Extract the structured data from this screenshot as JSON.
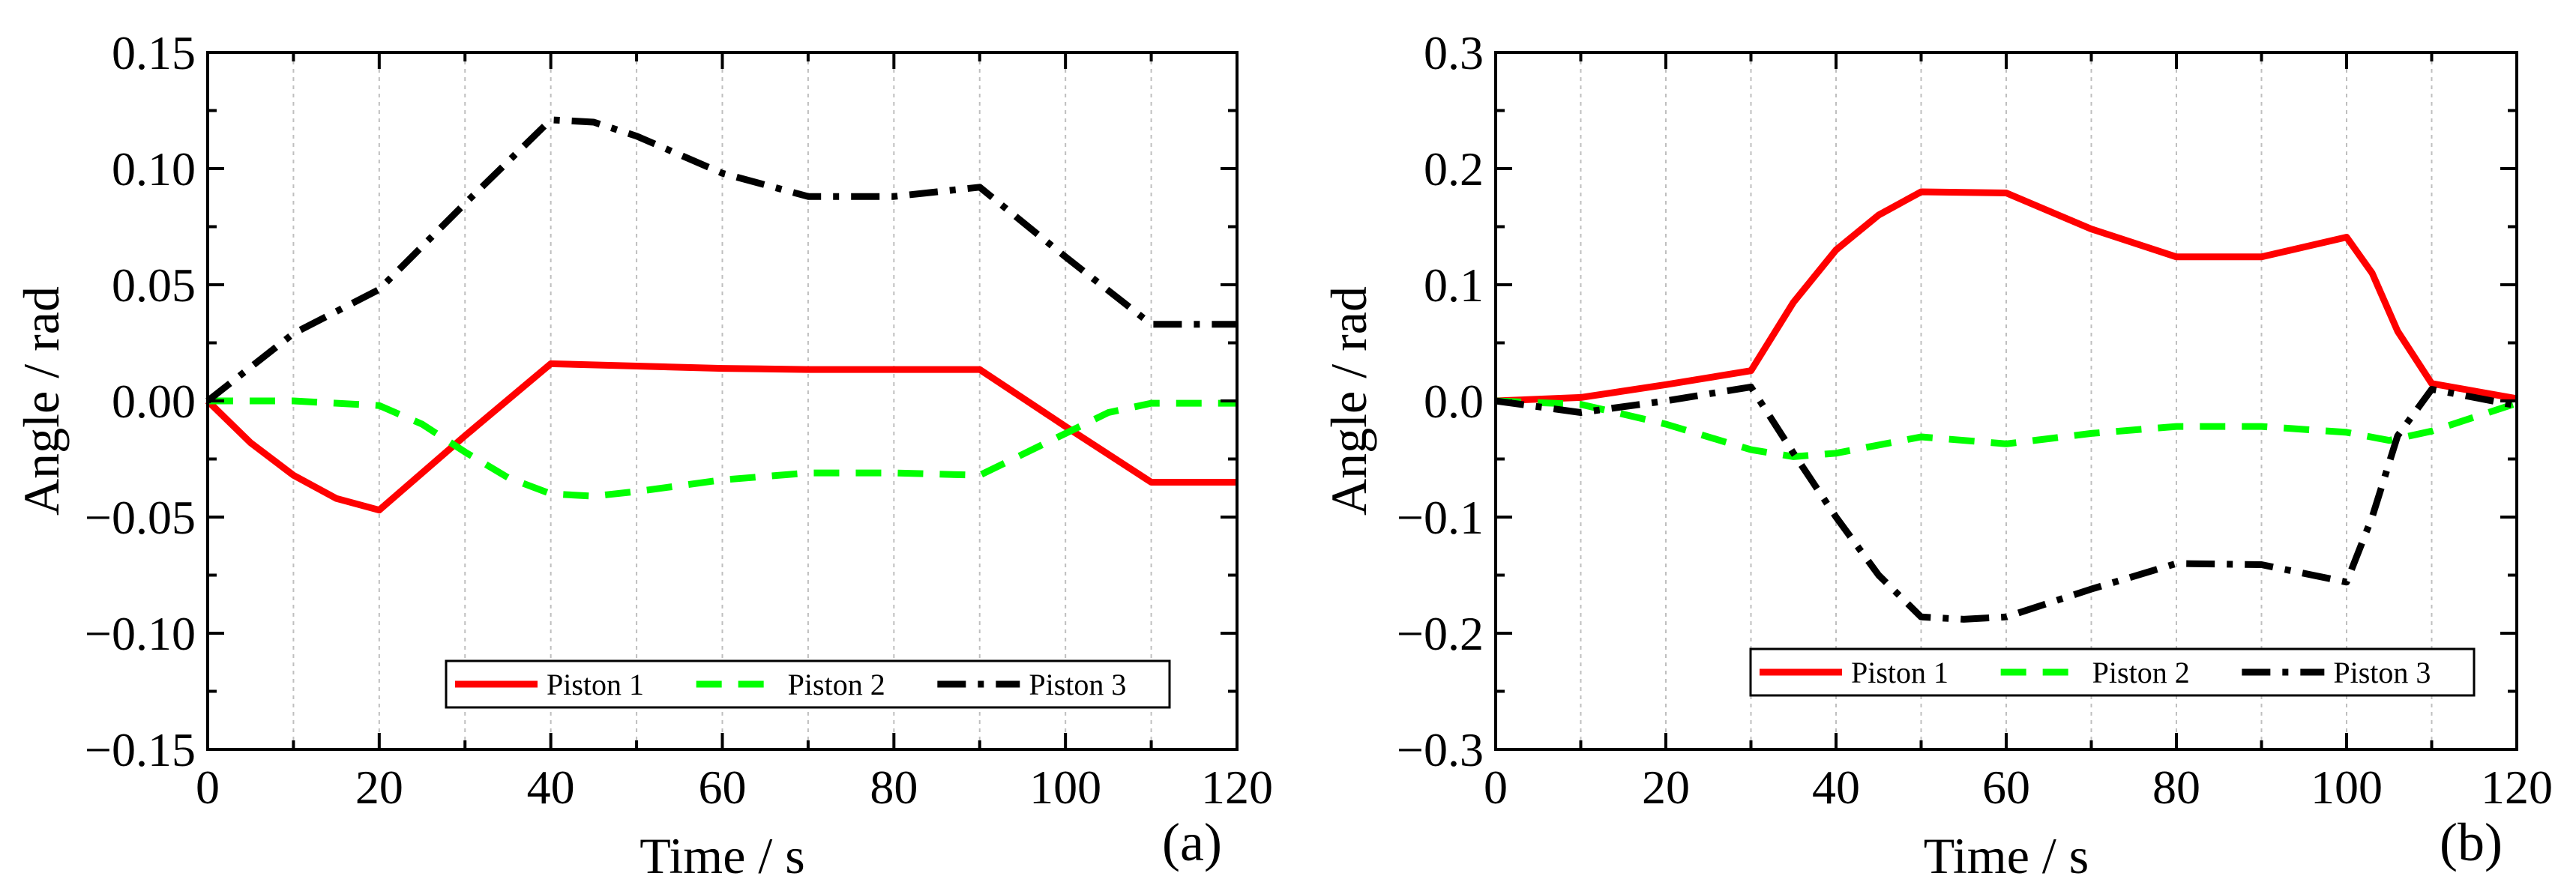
{
  "chart_data": [
    {
      "type": "line",
      "panel_label": "(a)",
      "xlabel": "Time / s",
      "ylabel": "Angle / rad",
      "xlim": [
        0,
        120
      ],
      "ylim": [
        -0.15,
        0.15
      ],
      "x_ticks": [
        0,
        20,
        40,
        60,
        80,
        100,
        120
      ],
      "y_ticks": [
        -0.15,
        -0.1,
        -0.05,
        0.0,
        0.05,
        0.1,
        0.15
      ],
      "x_tick_labels": [
        "0",
        "20",
        "40",
        "60",
        "80",
        "100",
        "120"
      ],
      "y_tick_labels": [
        "−0.15",
        "−0.10",
        "−0.05",
        "0.00",
        "0.05",
        "0.10",
        "0.15"
      ],
      "vertical_gridlines": [
        10,
        20,
        30,
        40,
        50,
        60,
        70,
        80,
        90,
        100,
        110
      ],
      "legend_position": "bottom-right",
      "series": [
        {
          "name": "Piston 1",
          "color": "#ff0000",
          "style": "solid",
          "x": [
            0,
            5,
            10,
            15,
            20,
            30,
            40,
            50,
            60,
            70,
            80,
            90,
            100,
            110,
            120
          ],
          "y": [
            0.0,
            -0.018,
            -0.032,
            -0.042,
            -0.047,
            -0.015,
            0.016,
            0.015,
            0.014,
            0.0135,
            0.0135,
            0.0135,
            -0.011,
            -0.035,
            -0.035
          ]
        },
        {
          "name": "Piston 2",
          "color": "#00ff00",
          "style": "dashed",
          "x": [
            0,
            10,
            20,
            25,
            30,
            35,
            40,
            45,
            50,
            60,
            70,
            80,
            90,
            100,
            105,
            110,
            120
          ],
          "y": [
            0.0,
            0.0,
            -0.002,
            -0.01,
            -0.022,
            -0.033,
            -0.04,
            -0.041,
            -0.039,
            -0.034,
            -0.031,
            -0.031,
            -0.032,
            -0.014,
            -0.005,
            -0.001,
            -0.001
          ]
        },
        {
          "name": "Piston 3",
          "color": "#000000",
          "style": "dashdot",
          "x": [
            0,
            10,
            20,
            30,
            40,
            45,
            50,
            60,
            70,
            80,
            90,
            100,
            110,
            120
          ],
          "y": [
            0.0,
            0.029,
            0.048,
            0.085,
            0.121,
            0.12,
            0.114,
            0.098,
            0.088,
            0.088,
            0.092,
            0.062,
            0.033,
            0.033
          ]
        }
      ]
    },
    {
      "type": "line",
      "panel_label": "(b)",
      "xlabel": "Time / s",
      "ylabel": "Angle / rad",
      "xlim": [
        0,
        120
      ],
      "ylim": [
        -0.3,
        0.3
      ],
      "x_ticks": [
        0,
        20,
        40,
        60,
        80,
        100,
        120
      ],
      "y_ticks": [
        -0.3,
        -0.2,
        -0.1,
        0.0,
        0.1,
        0.2,
        0.3
      ],
      "x_tick_labels": [
        "0",
        "20",
        "40",
        "60",
        "80",
        "100",
        "120"
      ],
      "y_tick_labels": [
        "−0.3",
        "−0.2",
        "−0.1",
        "0.0",
        "0.1",
        "0.2",
        "0.3"
      ],
      "vertical_gridlines": [
        10,
        20,
        30,
        40,
        50,
        60,
        70,
        80,
        90,
        100,
        110
      ],
      "legend_position": "bottom-right",
      "series": [
        {
          "name": "Piston 1",
          "color": "#ff0000",
          "style": "solid",
          "x": [
            0,
            10,
            20,
            30,
            35,
            40,
            45,
            50,
            60,
            70,
            80,
            90,
            100,
            103,
            106,
            110,
            120
          ],
          "y": [
            0.0,
            0.003,
            0.014,
            0.026,
            0.085,
            0.13,
            0.16,
            0.18,
            0.179,
            0.148,
            0.124,
            0.124,
            0.141,
            0.11,
            0.06,
            0.015,
            0.002
          ]
        },
        {
          "name": "Piston 2",
          "color": "#00ff00",
          "style": "dashed",
          "x": [
            0,
            10,
            20,
            30,
            35,
            40,
            50,
            60,
            70,
            80,
            90,
            100,
            105,
            110,
            120
          ],
          "y": [
            0.0,
            -0.003,
            -0.02,
            -0.042,
            -0.048,
            -0.045,
            -0.031,
            -0.037,
            -0.028,
            -0.022,
            -0.022,
            -0.027,
            -0.034,
            -0.026,
            -0.002
          ]
        },
        {
          "name": "Piston 3",
          "color": "#000000",
          "style": "dashdot",
          "x": [
            0,
            10,
            20,
            30,
            35,
            40,
            45,
            50,
            55,
            60,
            70,
            80,
            90,
            100,
            103,
            106,
            110,
            120
          ],
          "y": [
            0.0,
            -0.01,
            0.0,
            0.012,
            -0.045,
            -0.1,
            -0.15,
            -0.186,
            -0.188,
            -0.186,
            -0.162,
            -0.14,
            -0.141,
            -0.156,
            -0.1,
            -0.03,
            0.01,
            -0.004
          ]
        }
      ]
    }
  ]
}
